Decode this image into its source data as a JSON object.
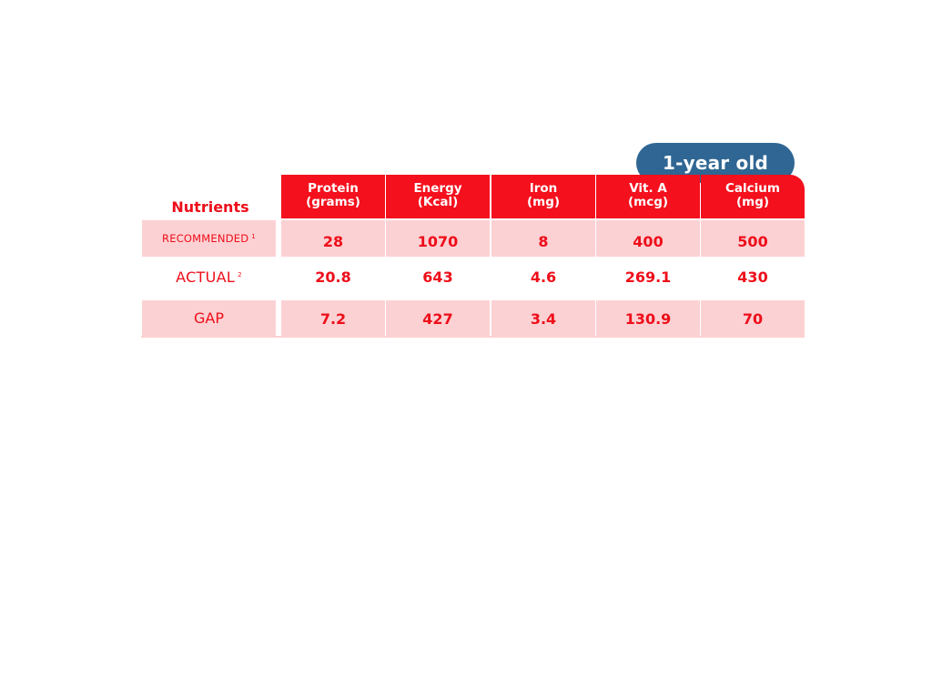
{
  "badge": {
    "label": "1-year old",
    "color": "#2f6693"
  },
  "table": {
    "row_header_title": "Nutrients",
    "columns": [
      "Protein\n(grams)",
      "Energy\n(Kcal)",
      "Iron\n(mg)",
      "Vit. A\n(mcg)",
      "Calcium\n(mg)"
    ],
    "rows": [
      {
        "label": "RECOMMENDED",
        "footnote": "1",
        "values": [
          "28",
          "1070",
          "8",
          "400",
          "500"
        ]
      },
      {
        "label": "ACTUAL",
        "footnote": "2",
        "values": [
          "20.8",
          "643",
          "4.6",
          "269.1",
          "430"
        ]
      },
      {
        "label": "GAP",
        "footnote": "",
        "values": [
          "7.2",
          "427",
          "3.4",
          "130.9",
          "70"
        ]
      }
    ]
  },
  "colors": {
    "header_red": "#f4101d",
    "text_red": "#ee0e1a",
    "row_pink": "#fcd1d3"
  },
  "chart_data": {
    "type": "table",
    "title": "",
    "group_label": "1-year old",
    "row_header": "Nutrients",
    "categories": [
      "Protein (grams)",
      "Energy (Kcal)",
      "Iron (mg)",
      "Vit. A (mcg)",
      "Calcium (mg)"
    ],
    "series": [
      {
        "name": "RECOMMENDED",
        "values": [
          28,
          1070,
          8,
          400,
          500
        ]
      },
      {
        "name": "ACTUAL",
        "values": [
          20.8,
          643,
          4.6,
          269.1,
          430
        ]
      },
      {
        "name": "GAP",
        "values": [
          7.2,
          427,
          3.4,
          130.9,
          70
        ]
      }
    ]
  }
}
